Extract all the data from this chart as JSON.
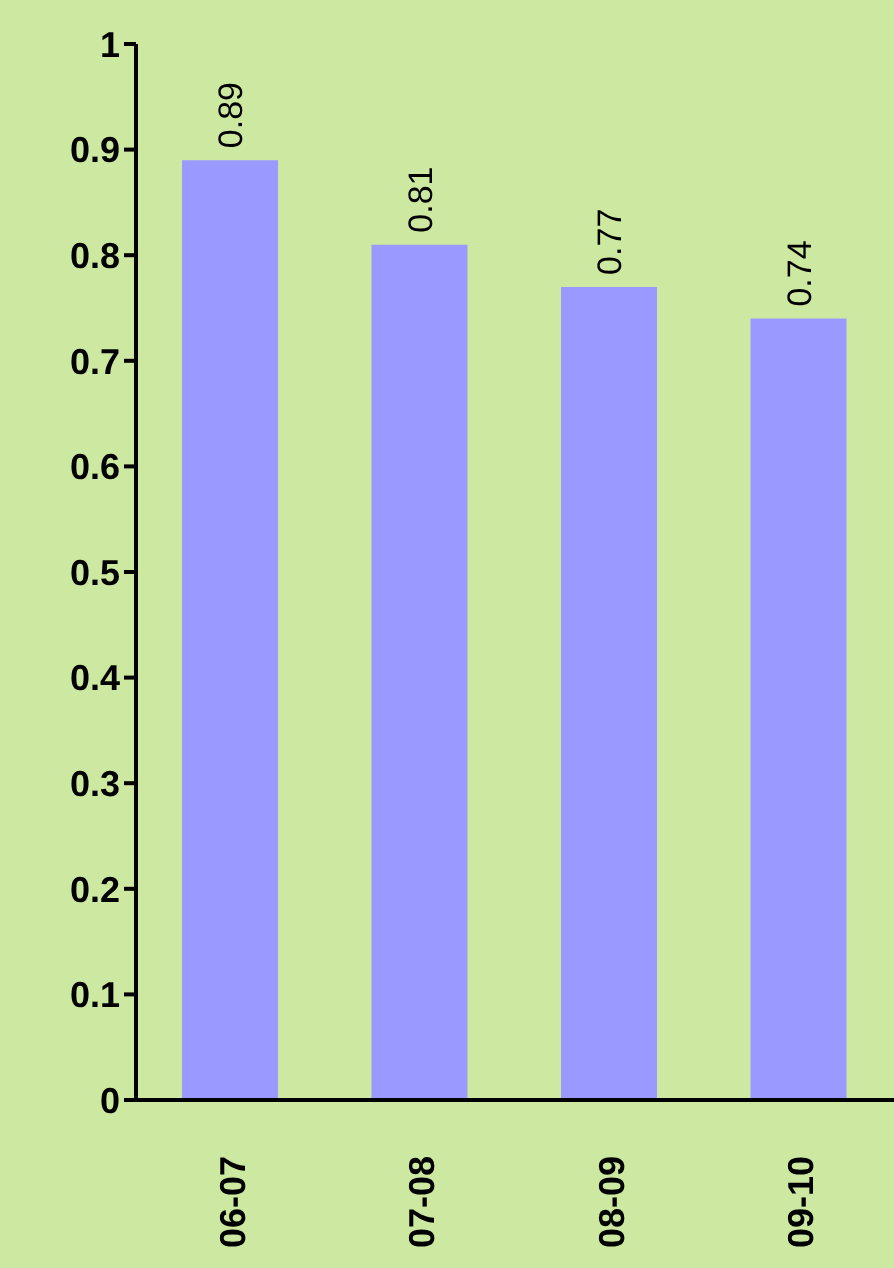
{
  "chart_data": {
    "type": "bar",
    "categories": [
      "06-07",
      "07-08",
      "08-09",
      "09-10"
    ],
    "values": [
      0.89,
      0.81,
      0.77,
      0.74
    ],
    "color": "#9999ff",
    "ylim": [
      0,
      1
    ],
    "yticks": [
      0,
      0.1,
      0.2,
      0.3,
      0.4,
      0.5,
      0.6,
      0.7,
      0.8,
      0.9,
      1
    ],
    "data_labels": true
  }
}
